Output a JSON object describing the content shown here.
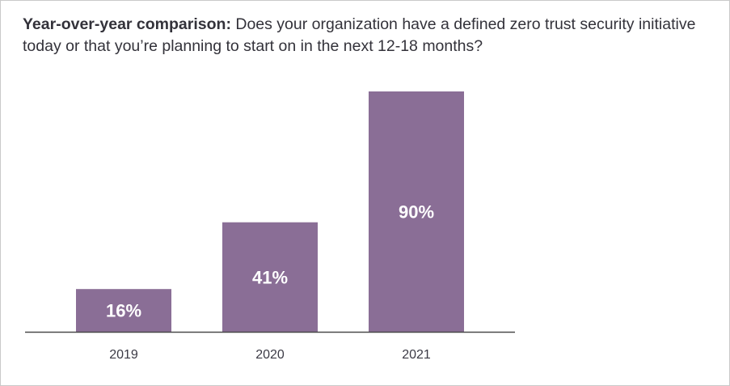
{
  "chart_data": {
    "type": "bar",
    "title_lead": "Year-over-year comparison:",
    "title_rest": " Does your organization have a defined zero trust security initiative today or that you’re planning to start on in the next 12-18 months?",
    "xlabel": "",
    "ylabel": "",
    "categories": [
      "2019",
      "2020",
      "2021"
    ],
    "values": [
      16,
      41,
      90
    ],
    "data_labels": [
      "16%",
      "41%",
      "90%"
    ],
    "ylim": [
      0,
      90
    ],
    "grid": false,
    "legend": "none",
    "colors": {
      "bar": "#8a6e96",
      "axis": "#4a4a4a",
      "label": "#ffffff",
      "tick": "#3b3a45",
      "title": "#33323a"
    }
  }
}
